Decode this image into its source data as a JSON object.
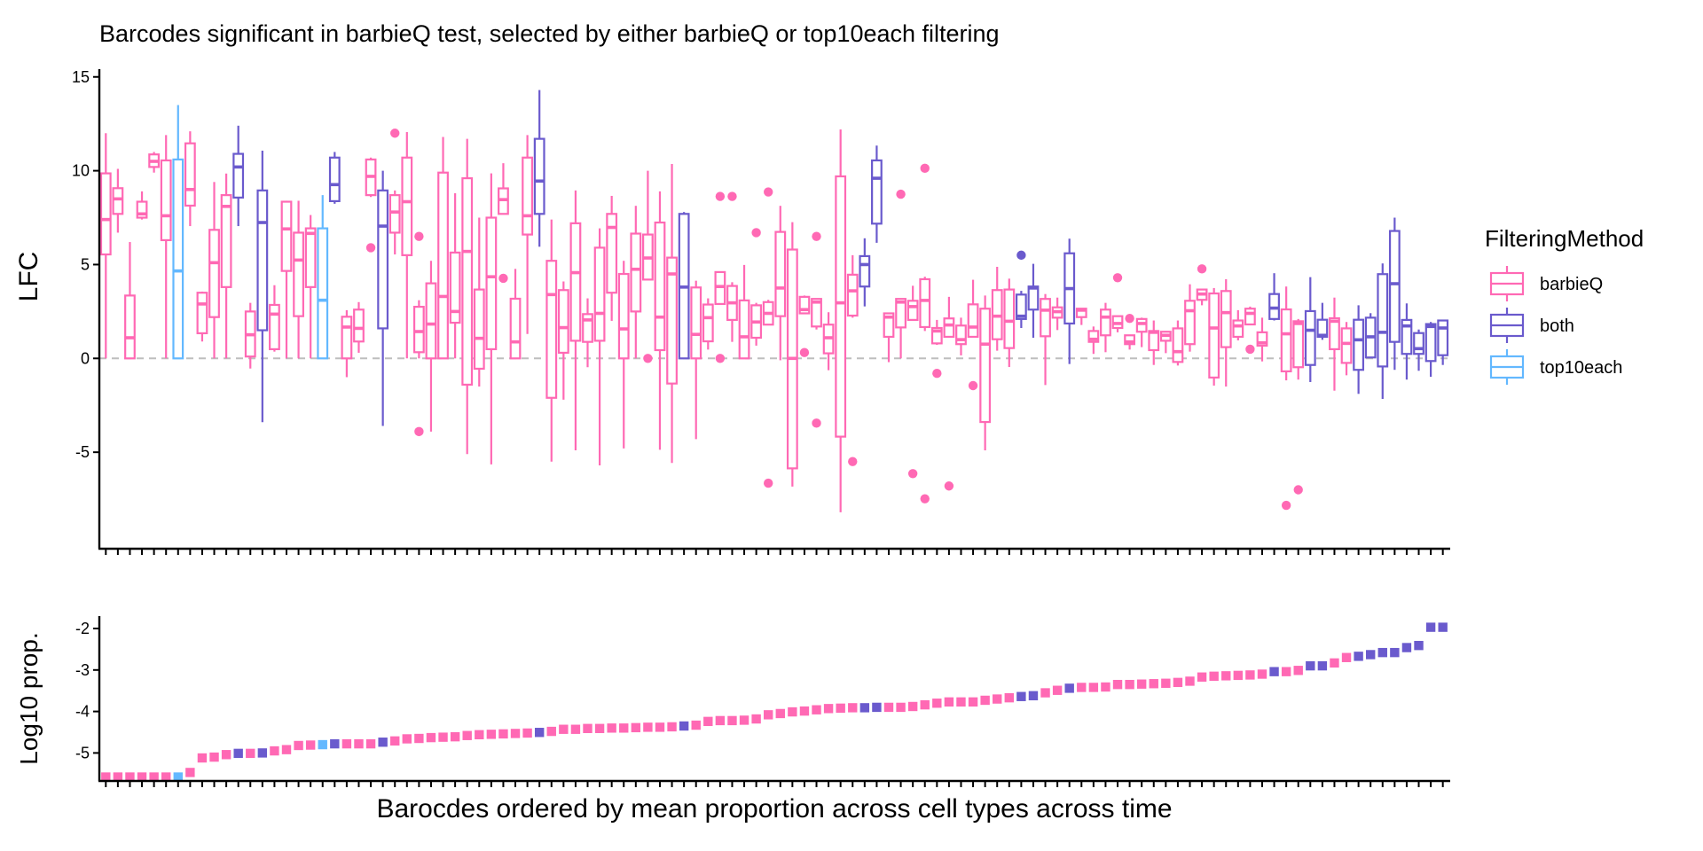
{
  "chart_data": {
    "type": "box",
    "title": "Barcodes significant in barbieQ test, selected by either barbieQ or top10each filtering",
    "xlabel": "Barocdes ordered by mean proportion across cell types across time",
    "legend": {
      "title": "FilteringMethod",
      "position": "right",
      "entries": [
        {
          "label": "barbieQ",
          "color": "#FF69B4"
        },
        {
          "label": "both",
          "color": "#6A5ACD"
        },
        {
          "label": "top10each",
          "color": "#63B8FF"
        }
      ]
    },
    "panels": [
      {
        "name": "lfc",
        "ylabel": "LFC",
        "ylim": [
          -10.1,
          15.4
        ],
        "yticks": [
          "15",
          "10",
          "5",
          "0",
          "-5"
        ],
        "ytick_values": [
          15,
          10,
          5,
          0,
          -5
        ],
        "reference_line": 0,
        "reference_color": "#BEBEBE"
      },
      {
        "name": "log10prop",
        "ylabel": "Log10 prop.",
        "ylim": [
          -5.65,
          -1.68
        ],
        "yticks": [
          "-2",
          "-3",
          "-4",
          "-5"
        ],
        "ytick_values": [
          -2,
          -3,
          -4,
          -5
        ]
      }
    ],
    "n_barcodes": 112,
    "method": [
      "barbieQ",
      "barbieQ",
      "barbieQ",
      "barbieQ",
      "barbieQ",
      "barbieQ",
      "top10each",
      "barbieQ",
      "barbieQ",
      "barbieQ",
      "barbieQ",
      "both",
      "barbieQ",
      "both",
      "barbieQ",
      "barbieQ",
      "barbieQ",
      "barbieQ",
      "top10each",
      "both",
      "barbieQ",
      "barbieQ",
      "barbieQ",
      "both",
      "barbieQ",
      "barbieQ",
      "barbieQ",
      "barbieQ",
      "barbieQ",
      "barbieQ",
      "barbieQ",
      "barbieQ",
      "barbieQ",
      "barbieQ",
      "barbieQ",
      "barbieQ",
      "both",
      "barbieQ",
      "barbieQ",
      "barbieQ",
      "barbieQ",
      "barbieQ",
      "barbieQ",
      "barbieQ",
      "barbieQ",
      "barbieQ",
      "barbieQ",
      "barbieQ",
      "both",
      "barbieQ",
      "barbieQ",
      "barbieQ",
      "barbieQ",
      "barbieQ",
      "barbieQ",
      "barbieQ",
      "barbieQ",
      "barbieQ",
      "barbieQ",
      "barbieQ",
      "barbieQ",
      "barbieQ",
      "barbieQ",
      "both",
      "both",
      "barbieQ",
      "barbieQ",
      "barbieQ",
      "barbieQ",
      "barbieQ",
      "barbieQ",
      "barbieQ",
      "barbieQ",
      "barbieQ",
      "barbieQ",
      "barbieQ",
      "both",
      "both",
      "barbieQ",
      "barbieQ",
      "both",
      "barbieQ",
      "barbieQ",
      "barbieQ",
      "barbieQ",
      "barbieQ",
      "barbieQ",
      "barbieQ",
      "barbieQ",
      "barbieQ",
      "barbieQ",
      "barbieQ",
      "barbieQ",
      "barbieQ",
      "barbieQ",
      "barbieQ",
      "barbieQ",
      "both",
      "barbieQ",
      "barbieQ",
      "both",
      "both",
      "barbieQ",
      "barbieQ",
      "both",
      "both",
      "both",
      "both",
      "both",
      "both",
      "both",
      "both"
    ],
    "lfc_box_fields": [
      "lower_whisker",
      "q1",
      "median",
      "q3",
      "upper_whisker"
    ],
    "lfc_box": [
      [
        0,
        5.54,
        7.4,
        9.86,
        12.0
      ],
      [
        6.7,
        7.7,
        8.5,
        9.07,
        10.1
      ],
      [
        0,
        0,
        1.1,
        3.35,
        6.2
      ],
      [
        7.4,
        7.5,
        7.7,
        8.35,
        8.9
      ],
      [
        9.9,
        10.2,
        10.5,
        10.87,
        11.0
      ],
      [
        0,
        6.3,
        7.6,
        10.55,
        11.9
      ],
      [
        0,
        0,
        4.66,
        10.6,
        13.5
      ],
      [
        7.05,
        8.14,
        9.0,
        11.46,
        12.1
      ],
      [
        0.9,
        1.34,
        2.9,
        3.5,
        3.56
      ],
      [
        0,
        2.2,
        5.1,
        6.85,
        9.4
      ],
      [
        0,
        3.8,
        8.1,
        8.7,
        9.85
      ],
      [
        7.05,
        8.57,
        10.2,
        10.9,
        12.4
      ],
      [
        -0.54,
        0.1,
        1.26,
        2.5,
        2.96
      ],
      [
        -3.4,
        1.5,
        7.24,
        8.95,
        11.07
      ],
      [
        0.36,
        0.49,
        2.36,
        2.85,
        3.9
      ],
      [
        0,
        4.66,
        6.9,
        8.35,
        8.4
      ],
      [
        0,
        2.25,
        5.24,
        6.7,
        8.4
      ],
      [
        0,
        3.8,
        6.66,
        6.93,
        7.64
      ],
      [
        0,
        0,
        3.1,
        6.93,
        8.7
      ],
      [
        8.24,
        8.38,
        9.26,
        10.7,
        11.0
      ],
      [
        -1.0,
        0,
        1.67,
        2.22,
        2.57
      ],
      [
        0.3,
        0.9,
        1.6,
        2.6,
        3.0
      ],
      [
        8.6,
        8.7,
        9.7,
        10.6,
        10.7
      ],
      [
        -3.6,
        1.6,
        7.05,
        8.95,
        10.0
      ],
      [
        5.54,
        6.7,
        7.8,
        8.7,
        8.95
      ],
      [
        0,
        5.5,
        8.35,
        10.7,
        12.06
      ],
      [
        0,
        0.33,
        1.43,
        2.75,
        3.1
      ],
      [
        -3.9,
        0,
        1.83,
        4.0,
        5.2
      ],
      [
        0,
        0,
        3.3,
        9.9,
        11.8
      ],
      [
        0,
        1.9,
        2.5,
        5.64,
        8.8
      ],
      [
        -5.1,
        -1.4,
        5.7,
        9.6,
        11.7
      ],
      [
        -1.5,
        -0.55,
        1.07,
        3.67,
        7.5
      ],
      [
        -5.65,
        0.49,
        4.35,
        7.5,
        9.86
      ],
      [
        7.7,
        7.7,
        8.46,
        9.06,
        10.4
      ],
      [
        0,
        0,
        0.88,
        3.18,
        4.77
      ],
      [
        1.3,
        6.6,
        7.6,
        10.7,
        11.9
      ],
      [
        5.95,
        7.7,
        9.45,
        11.7,
        14.3
      ],
      [
        -5.5,
        -2.1,
        3.4,
        5.2,
        7.4
      ],
      [
        -2.2,
        0.3,
        1.64,
        3.64,
        4.1
      ],
      [
        -4.9,
        0.94,
        4.57,
        7.2,
        8.95
      ],
      [
        -0.47,
        0.88,
        2.05,
        2.36,
        3.2
      ],
      [
        -5.7,
        0.94,
        2.4,
        5.9,
        6.93
      ],
      [
        2.0,
        3.5,
        6.98,
        7.7,
        8.66
      ],
      [
        -4.8,
        0,
        1.57,
        4.5,
        5.2
      ],
      [
        0,
        2.5,
        4.75,
        6.65,
        8.13
      ],
      [
        4.2,
        4.2,
        5.35,
        6.6,
        10.0
      ],
      [
        -4.87,
        0.44,
        2.2,
        7.24,
        8.9
      ],
      [
        -5.57,
        -1.34,
        4.5,
        5.37,
        10.36
      ],
      [
        0,
        0,
        3.8,
        7.7,
        7.8
      ],
      [
        -4.3,
        0,
        1.28,
        3.78,
        4.14
      ],
      [
        0.47,
        0.91,
        2.17,
        2.87,
        3.2
      ],
      [
        2.9,
        2.9,
        3.83,
        4.6,
        4.6
      ],
      [
        0.88,
        2.05,
        2.96,
        3.86,
        4.06
      ],
      [
        0,
        0,
        1.15,
        3.09,
        4.98
      ],
      [
        0.68,
        1.1,
        1.94,
        2.83,
        2.96
      ],
      [
        1.8,
        1.8,
        2.4,
        3.0,
        3.12
      ],
      [
        -0.1,
        2.25,
        3.75,
        6.74,
        8.13
      ],
      [
        -6.83,
        -5.86,
        0,
        5.8,
        7.26
      ],
      [
        2.4,
        2.4,
        2.6,
        3.28,
        3.35
      ],
      [
        1.54,
        1.7,
        3.0,
        3.17,
        3.2
      ],
      [
        -0.63,
        0.27,
        1.1,
        1.8,
        2.46
      ],
      [
        -8.2,
        -4.17,
        2.96,
        9.7,
        12.2
      ],
      [
        2.17,
        2.28,
        3.6,
        4.46,
        5.5
      ],
      [
        2.77,
        3.83,
        5.0,
        5.45,
        6.4
      ],
      [
        6.16,
        7.18,
        9.6,
        10.55,
        11.34
      ],
      [
        -0.2,
        1.15,
        2.2,
        2.4,
        2.4
      ],
      [
        0,
        1.65,
        3.0,
        3.17,
        3.2
      ],
      [
        2.05,
        2.05,
        2.76,
        3.07,
        3.87
      ],
      [
        1.46,
        1.67,
        3.09,
        4.22,
        4.35
      ],
      [
        0.72,
        0.8,
        1.46,
        1.62,
        2.05
      ],
      [
        1.15,
        1.15,
        1.78,
        2.13,
        3.28
      ],
      [
        0.16,
        0.76,
        1.0,
        1.75,
        2.17
      ],
      [
        1.15,
        1.15,
        1.67,
        2.88,
        4.19
      ],
      [
        -4.9,
        -3.39,
        0.76,
        2.65,
        3.35
      ],
      [
        0.41,
        1.02,
        2.25,
        3.64,
        4.88
      ],
      [
        -0.46,
        0.55,
        1.98,
        3.67,
        4.25
      ],
      [
        1.62,
        2.1,
        2.25,
        3.4,
        3.6
      ],
      [
        1.1,
        2.6,
        3.75,
        3.83,
        5.04
      ],
      [
        -1.42,
        1.18,
        2.57,
        3.17,
        3.43
      ],
      [
        1.51,
        2.17,
        2.49,
        2.72,
        3.24
      ],
      [
        -0.3,
        1.86,
        3.72,
        5.6,
        6.38
      ],
      [
        1.78,
        2.2,
        2.57,
        2.65,
        2.68
      ],
      [
        0.24,
        0.88,
        1.02,
        1.46,
        1.7
      ],
      [
        0.33,
        1.23,
        2.2,
        2.6,
        2.96
      ],
      [
        1.39,
        1.62,
        1.86,
        2.25,
        2.25
      ],
      [
        0.47,
        0.76,
        0.88,
        1.23,
        1.23
      ],
      [
        0.6,
        1.42,
        1.86,
        2.1,
        2.17
      ],
      [
        -0.35,
        0.44,
        1.39,
        1.46,
        2.02
      ],
      [
        0.28,
        0.94,
        1.23,
        1.42,
        1.46
      ],
      [
        -0.38,
        -0.19,
        0.36,
        1.6,
        2.02
      ],
      [
        0.36,
        0.76,
        2.54,
        3.07,
        3.95
      ],
      [
        2.83,
        3.12,
        3.43,
        3.67,
        3.72
      ],
      [
        -1.45,
        -1.02,
        1.62,
        3.46,
        3.75
      ],
      [
        -1.5,
        0.6,
        2.44,
        3.59,
        4.22
      ],
      [
        0.96,
        1.15,
        1.73,
        2.02,
        2.57
      ],
      [
        1.81,
        1.81,
        2.4,
        2.65,
        2.76
      ],
      [
        -0.16,
        0.68,
        0.83,
        1.39,
        2.17
      ],
      [
        2.02,
        2.1,
        2.68,
        3.43,
        4.54
      ],
      [
        -1.17,
        -0.69,
        1.31,
        2.61,
        3.83
      ],
      [
        -1.13,
        -0.47,
        1.86,
        1.98,
        2.1
      ],
      [
        -1.26,
        -0.35,
        1.5,
        2.52,
        4.33
      ],
      [
        0.99,
        1.15,
        1.23,
        2.06,
        2.96
      ],
      [
        -1.72,
        0.49,
        1.98,
        2.14,
        3.24
      ],
      [
        -0.9,
        -0.24,
        0.8,
        1.6,
        1.94
      ],
      [
        -1.89,
        -0.61,
        0.99,
        2.06,
        2.83
      ],
      [
        0.05,
        0.05,
        1.15,
        2.17,
        2.41
      ],
      [
        -2.16,
        -0.43,
        1.39,
        4.49,
        5.06
      ],
      [
        -0.61,
        0.88,
        3.98,
        6.79,
        7.5
      ],
      [
        -1.13,
        0.24,
        1.73,
        2.05,
        2.93
      ],
      [
        -0.66,
        0.24,
        0.52,
        1.35,
        1.54
      ],
      [
        -0.98,
        -0.14,
        1.7,
        1.83,
        1.94
      ],
      [
        -0.35,
        0.17,
        1.62,
        2.02,
        2.02
      ]
    ],
    "lfc_outliers": [
      [],
      [],
      [],
      [],
      [],
      [],
      [],
      [],
      [],
      [],
      [],
      [],
      [],
      [],
      [],
      [],
      [],
      [],
      [],
      [],
      [],
      [],
      [
        5.9
      ],
      [],
      [
        12.0
      ],
      [],
      [
        6.5,
        -3.9
      ],
      [],
      [],
      [],
      [],
      [],
      [],
      [
        4.27
      ],
      [],
      [],
      [],
      [],
      [],
      [],
      [],
      [],
      [],
      [],
      [],
      [
        0
      ],
      [],
      [],
      [],
      [],
      [],
      [
        8.63,
        0
      ],
      [
        8.63
      ],
      [],
      [
        6.7
      ],
      [
        8.87,
        -6.65
      ],
      [],
      [],
      [
        0.31
      ],
      [
        6.5,
        -3.45
      ],
      [],
      [],
      [
        -5.5
      ],
      [],
      [],
      [],
      [
        8.75
      ],
      [
        -6.14
      ],
      [
        10.13,
        -7.48
      ],
      [
        -0.8
      ],
      [
        -6.8
      ],
      [],
      [
        -1.45
      ],
      [],
      [],
      [],
      [
        5.5
      ],
      [],
      [],
      [],
      [],
      [],
      [],
      [],
      [
        4.3
      ],
      [
        2.13
      ],
      [],
      [],
      [],
      [],
      [],
      [
        4.77
      ],
      [],
      [],
      [],
      [
        0.49
      ],
      [],
      [],
      [
        -7.83
      ],
      [
        -7.0
      ],
      [],
      [],
      [],
      [],
      [],
      [],
      [],
      [],
      [],
      [],
      [],
      []
    ],
    "log10_prop": [
      -5.58,
      -5.58,
      -5.58,
      -5.58,
      -5.58,
      -5.58,
      -5.58,
      -5.47,
      -5.12,
      -5.1,
      -5.04,
      -5.01,
      -5.01,
      -5.0,
      -4.95,
      -4.92,
      -4.82,
      -4.81,
      -4.8,
      -4.78,
      -4.78,
      -4.78,
      -4.78,
      -4.74,
      -4.71,
      -4.66,
      -4.65,
      -4.63,
      -4.62,
      -4.61,
      -4.58,
      -4.56,
      -4.55,
      -4.54,
      -4.53,
      -4.52,
      -4.505,
      -4.48,
      -4.43,
      -4.43,
      -4.41,
      -4.41,
      -4.4,
      -4.4,
      -4.39,
      -4.38,
      -4.38,
      -4.37,
      -4.35,
      -4.33,
      -4.24,
      -4.22,
      -4.22,
      -4.21,
      -4.18,
      -4.08,
      -4.05,
      -4.01,
      -3.99,
      -3.96,
      -3.93,
      -3.92,
      -3.91,
      -3.91,
      -3.9,
      -3.9,
      -3.9,
      -3.88,
      -3.84,
      -3.8,
      -3.77,
      -3.77,
      -3.77,
      -3.73,
      -3.7,
      -3.67,
      -3.64,
      -3.62,
      -3.55,
      -3.49,
      -3.44,
      -3.42,
      -3.42,
      -3.41,
      -3.35,
      -3.35,
      -3.34,
      -3.33,
      -3.32,
      -3.3,
      -3.27,
      -3.17,
      -3.15,
      -3.14,
      -3.13,
      -3.12,
      -3.1,
      -3.04,
      -3.04,
      -3.01,
      -2.9,
      -2.9,
      -2.83,
      -2.7,
      -2.67,
      -2.63,
      -2.58,
      -2.58,
      -2.46,
      -2.41,
      -1.97,
      -1.97
    ]
  }
}
